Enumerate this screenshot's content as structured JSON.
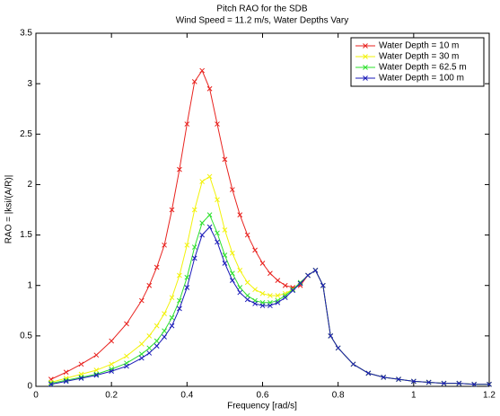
{
  "chart_data": {
    "type": "line",
    "title": "Pitch RAO for the SDB",
    "subtitle": "Wind Speed = 11.2 m/s, Water Depths Vary",
    "x_label": "Frequency [rad/s]",
    "y_label": "RAO = |ksi/(A/R)|",
    "x": [
      0.04,
      0.08,
      0.12,
      0.16,
      0.2,
      0.24,
      0.28,
      0.3,
      0.32,
      0.34,
      0.36,
      0.38,
      0.4,
      0.42,
      0.44,
      0.46,
      0.48,
      0.5,
      0.52,
      0.54,
      0.56,
      0.58,
      0.6,
      0.62,
      0.64,
      0.66,
      0.68,
      0.7,
      0.72,
      0.74,
      0.76,
      0.78,
      0.8,
      0.84,
      0.88,
      0.92,
      0.96,
      1.0,
      1.04,
      1.08,
      1.12,
      1.16,
      1.2
    ],
    "series": [
      {
        "name": "Water Depth = 10 m",
        "color": "#e8221e",
        "values": [
          0.07,
          0.14,
          0.22,
          0.31,
          0.45,
          0.62,
          0.85,
          1.0,
          1.18,
          1.4,
          1.75,
          2.15,
          2.6,
          3.02,
          3.13,
          2.95,
          2.6,
          2.25,
          1.95,
          1.7,
          1.5,
          1.35,
          1.22,
          1.12,
          1.05,
          1.0,
          0.98,
          1.0,
          1.1,
          1.15,
          1.0,
          0.5,
          0.38,
          0.22,
          0.13,
          0.09,
          0.07,
          0.05,
          0.04,
          0.03,
          0.03,
          0.02,
          0.02
        ]
      },
      {
        "name": "Water Depth = 30 m",
        "color": "#f2f20a",
        "values": [
          0.04,
          0.08,
          0.12,
          0.16,
          0.22,
          0.3,
          0.42,
          0.5,
          0.6,
          0.72,
          0.88,
          1.1,
          1.4,
          1.75,
          2.03,
          2.08,
          1.85,
          1.55,
          1.32,
          1.15,
          1.03,
          0.96,
          0.92,
          0.9,
          0.9,
          0.92,
          0.96,
          1.02,
          1.1,
          1.15,
          1.0,
          0.5,
          0.38,
          0.22,
          0.13,
          0.09,
          0.07,
          0.05,
          0.04,
          0.03,
          0.03,
          0.02,
          0.02
        ]
      },
      {
        "name": "Water Depth = 62.5 m",
        "color": "#2ee02e",
        "values": [
          0.03,
          0.06,
          0.09,
          0.12,
          0.17,
          0.23,
          0.32,
          0.38,
          0.45,
          0.55,
          0.68,
          0.85,
          1.08,
          1.38,
          1.62,
          1.7,
          1.52,
          1.3,
          1.12,
          0.98,
          0.9,
          0.85,
          0.83,
          0.83,
          0.85,
          0.9,
          0.96,
          1.03,
          1.1,
          1.15,
          1.0,
          0.5,
          0.38,
          0.22,
          0.13,
          0.09,
          0.07,
          0.05,
          0.04,
          0.03,
          0.03,
          0.02,
          0.02
        ]
      },
      {
        "name": "Water Depth = 100 m",
        "color": "#1a1ab8",
        "values": [
          0.02,
          0.05,
          0.08,
          0.11,
          0.15,
          0.2,
          0.28,
          0.33,
          0.4,
          0.49,
          0.6,
          0.77,
          0.98,
          1.27,
          1.5,
          1.58,
          1.43,
          1.22,
          1.05,
          0.93,
          0.86,
          0.82,
          0.8,
          0.8,
          0.83,
          0.88,
          0.95,
          1.02,
          1.1,
          1.15,
          1.0,
          0.5,
          0.38,
          0.22,
          0.13,
          0.09,
          0.07,
          0.05,
          0.04,
          0.03,
          0.03,
          0.02,
          0.02
        ]
      }
    ],
    "xlim": [
      0,
      1.2
    ],
    "xticks": [
      0,
      0.2,
      0.4,
      0.6,
      0.8,
      1,
      1.2
    ],
    "ylim": [
      0,
      3.5
    ],
    "yticks": [
      0,
      0.5,
      1,
      1.5,
      2,
      2.5,
      3,
      3.5
    ],
    "grid": false,
    "legend": "top-right"
  }
}
